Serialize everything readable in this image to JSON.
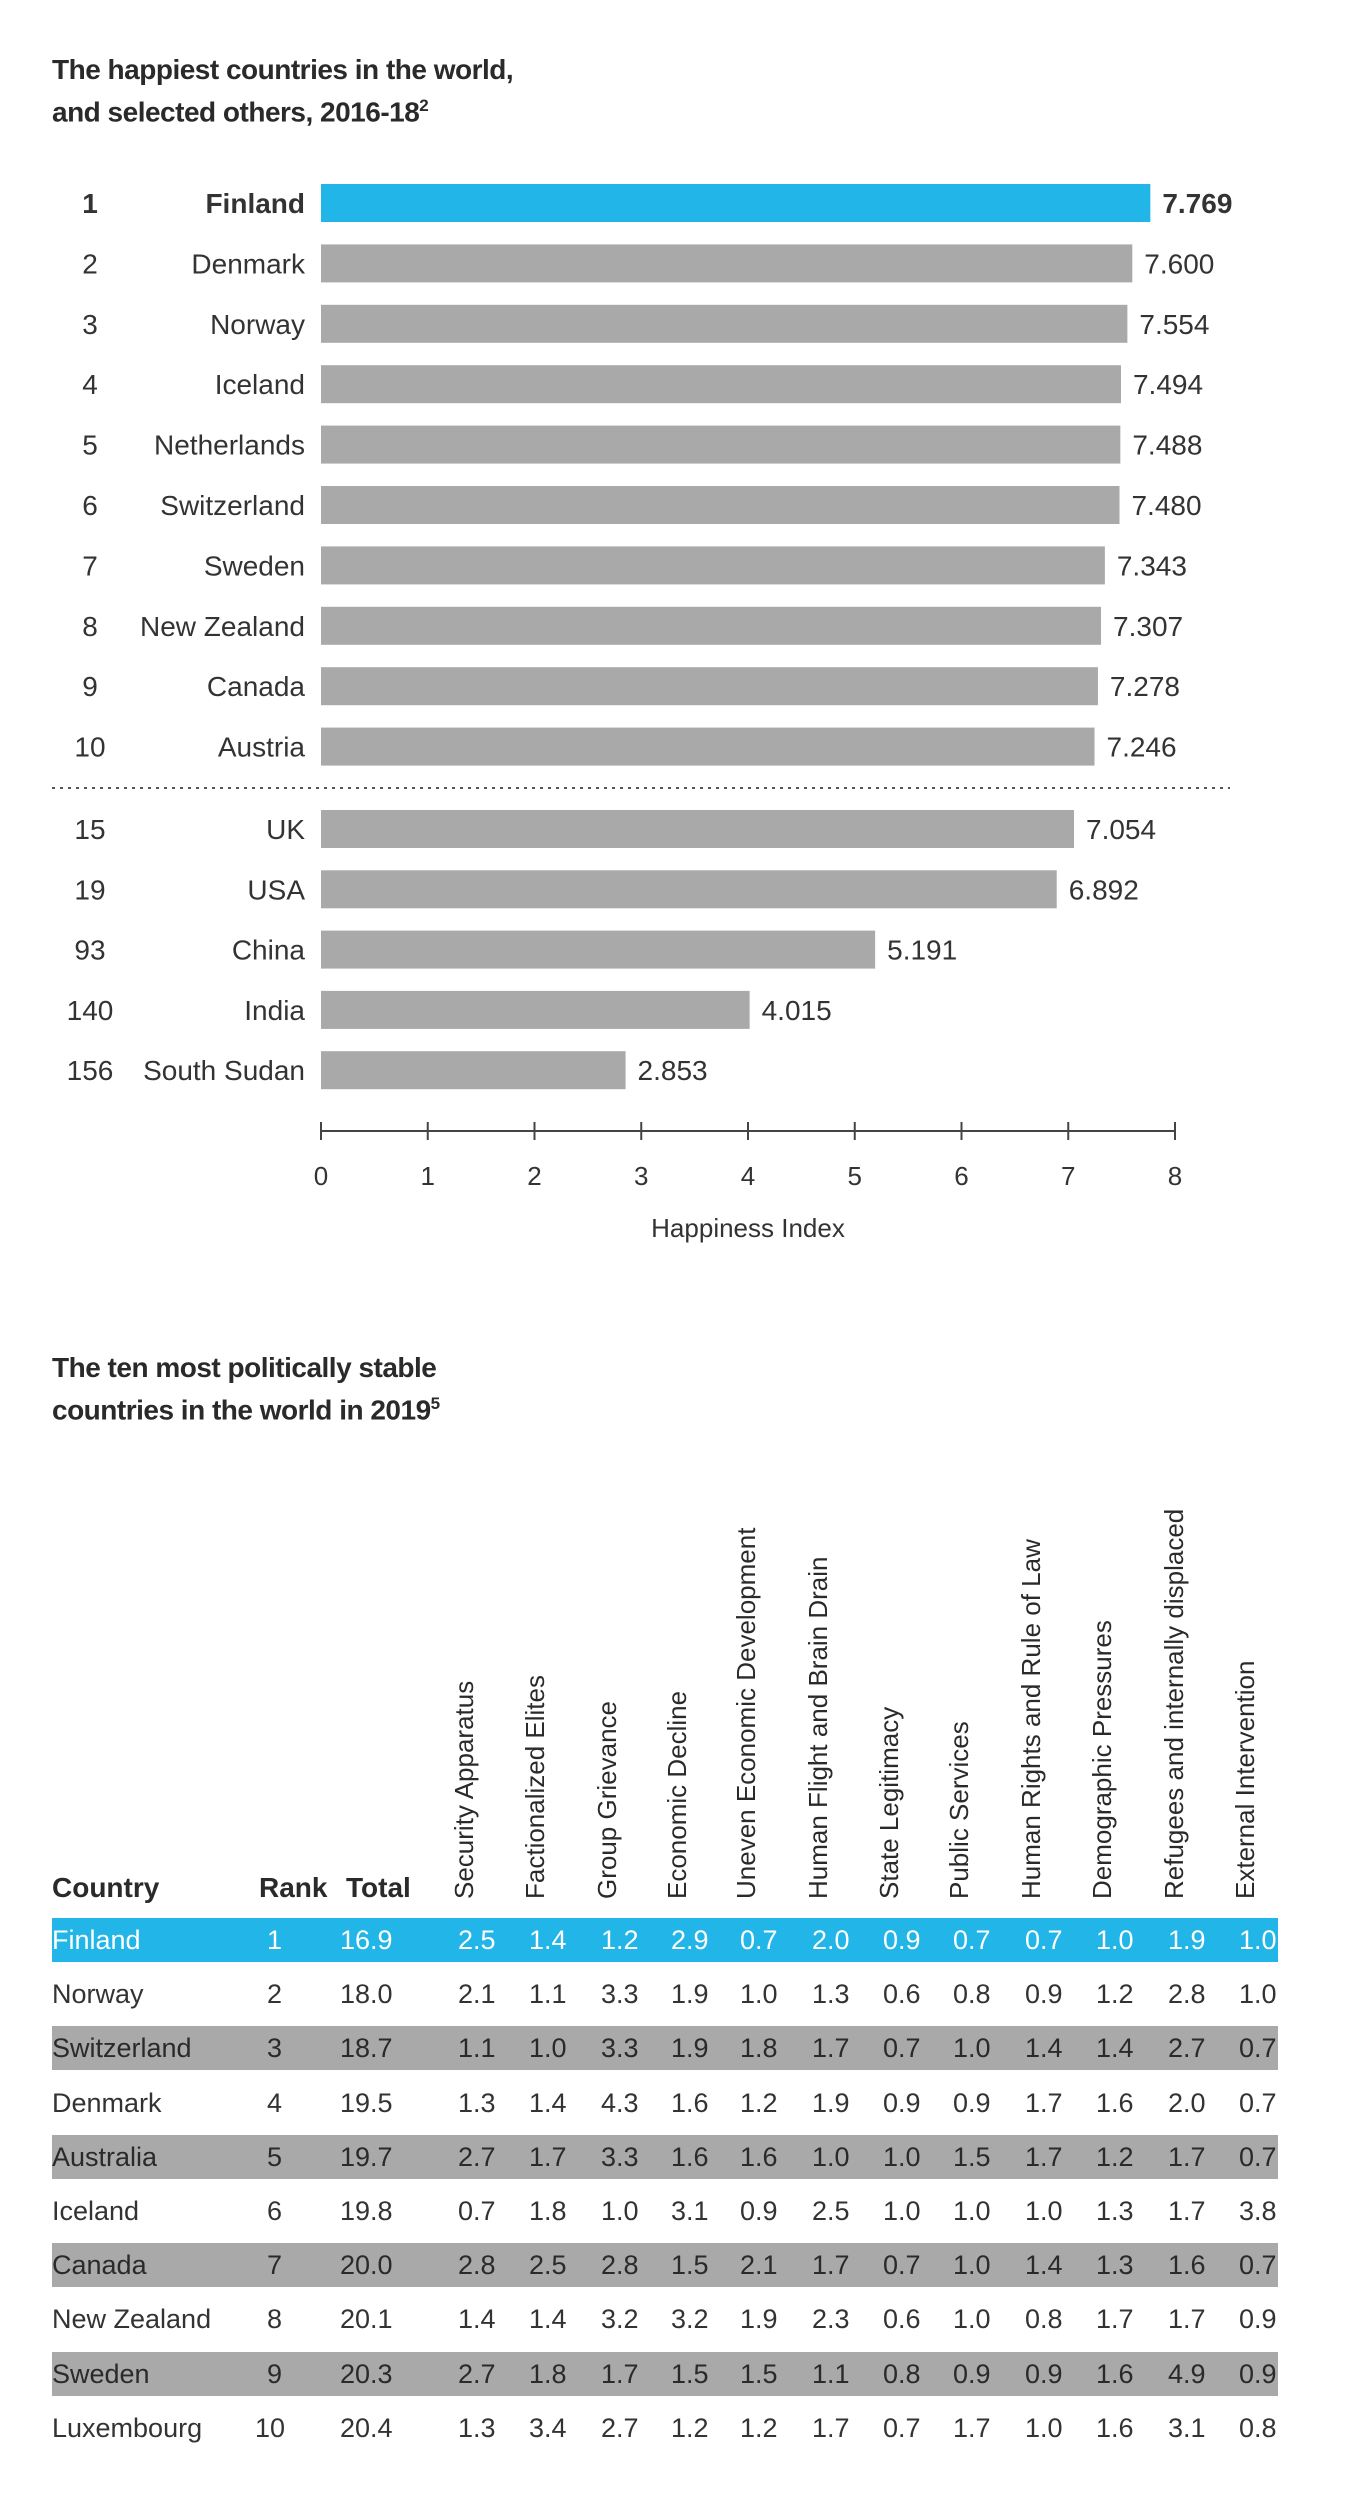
{
  "colors": {
    "highlight": "#22b5e8",
    "bar": "#a9a9a9",
    "band": "#a9a9a9"
  },
  "chart_data": [
    {
      "type": "bar",
      "orientation": "horizontal",
      "title": "The happiest countries in the world,",
      "title_line2": "and selected others, 2016-18",
      "title_footnote": "2",
      "xlabel": "Happiness Index",
      "xlim": [
        0,
        8
      ],
      "xticks": [
        "0",
        "1",
        "2",
        "3",
        "4",
        "5",
        "6",
        "7",
        "8"
      ],
      "separator_after_index": 9,
      "ranks": [
        "1",
        "2",
        "3",
        "4",
        "5",
        "6",
        "7",
        "8",
        "9",
        "10",
        "15",
        "19",
        "93",
        "140",
        "156"
      ],
      "categories": [
        "Finland",
        "Denmark",
        "Norway",
        "Iceland",
        "Netherlands",
        "Switzerland",
        "Sweden",
        "New Zealand",
        "Canada",
        "Austria",
        "UK",
        "USA",
        "China",
        "India",
        "South Sudan"
      ],
      "values": [
        7.769,
        7.6,
        7.554,
        7.494,
        7.488,
        7.48,
        7.343,
        7.307,
        7.278,
        7.246,
        7.054,
        6.892,
        5.191,
        4.015,
        2.853
      ],
      "labels": [
        "7.769",
        "7.600",
        "7.554",
        "7.494",
        "7.488",
        "7.480",
        "7.343",
        "7.307",
        "7.278",
        "7.246",
        "7.054",
        "6.892",
        "5.191",
        "4.015",
        "2.853"
      ],
      "highlighted": "Finland"
    },
    {
      "type": "table",
      "title": "The ten most politically stable",
      "title_line2": "countries in the world in 2019",
      "title_footnote": "5",
      "columns": [
        "Country",
        "Rank",
        "Total",
        "Security Apparatus",
        "Factionalized Elites",
        "Group Grievance",
        "Economic Decline",
        "Uneven Economic Development",
        "Human Flight and Brain Drain",
        "State Legitimacy",
        "Public Services",
        "Human Rights and Rule of Law",
        "Demographic Pressures",
        "Refugees and internally displaced",
        "External Intervention"
      ],
      "rows": [
        [
          "Finland",
          "1",
          "16.9",
          "2.5",
          "1.4",
          "1.2",
          "2.9",
          "0.7",
          "2.0",
          "0.9",
          "0.7",
          "0.7",
          "1.0",
          "1.9",
          "1.0"
        ],
        [
          "Norway",
          "2",
          "18.0",
          "2.1",
          "1.1",
          "3.3",
          "1.9",
          "1.0",
          "1.3",
          "0.6",
          "0.8",
          "0.9",
          "1.2",
          "2.8",
          "1.0"
        ],
        [
          "Switzerland",
          "3",
          "18.7",
          "1.1",
          "1.0",
          "3.3",
          "1.9",
          "1.8",
          "1.7",
          "0.7",
          "1.0",
          "1.4",
          "1.4",
          "2.7",
          "0.7"
        ],
        [
          "Denmark",
          "4",
          "19.5",
          "1.3",
          "1.4",
          "4.3",
          "1.6",
          "1.2",
          "1.9",
          "0.9",
          "0.9",
          "1.7",
          "1.6",
          "2.0",
          "0.7"
        ],
        [
          "Australia",
          "5",
          "19.7",
          "2.7",
          "1.7",
          "3.3",
          "1.6",
          "1.6",
          "1.0",
          "1.0",
          "1.5",
          "1.7",
          "1.2",
          "1.7",
          "0.7"
        ],
        [
          "Iceland",
          "6",
          "19.8",
          "0.7",
          "1.8",
          "1.0",
          "3.1",
          "0.9",
          "2.5",
          "1.0",
          "1.0",
          "1.0",
          "1.3",
          "1.7",
          "3.8"
        ],
        [
          "Canada",
          "7",
          "20.0",
          "2.8",
          "2.5",
          "2.8",
          "1.5",
          "2.1",
          "1.7",
          "0.7",
          "1.0",
          "1.4",
          "1.3",
          "1.6",
          "0.7"
        ],
        [
          "New Zealand",
          "8",
          "20.1",
          "1.4",
          "1.4",
          "3.2",
          "3.2",
          "1.9",
          "2.3",
          "0.6",
          "1.0",
          "0.8",
          "1.7",
          "1.7",
          "0.9"
        ],
        [
          "Sweden",
          "9",
          "20.3",
          "2.7",
          "1.8",
          "1.7",
          "1.5",
          "1.5",
          "1.1",
          "0.8",
          "0.9",
          "0.9",
          "1.6",
          "4.9",
          "0.9"
        ],
        [
          "Luxembourg",
          "10",
          "20.4",
          "1.3",
          "3.4",
          "2.7",
          "1.2",
          "1.2",
          "1.7",
          "0.7",
          "1.7",
          "1.0",
          "1.6",
          "3.1",
          "0.8"
        ]
      ]
    }
  ]
}
